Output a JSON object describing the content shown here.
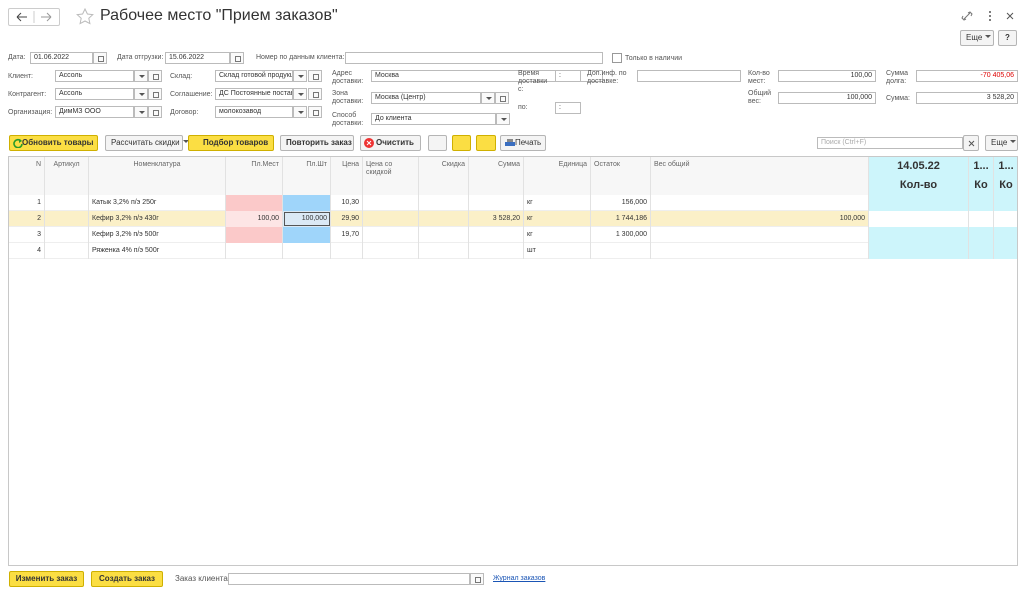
{
  "header": {
    "title": "Рабочее место \"Прием заказов\"",
    "more": "Еще",
    "help": "?"
  },
  "form": {
    "date": {
      "label": "Дата:",
      "value": "01.06.2022"
    },
    "ship_date": {
      "label": "Дата отгрузки:",
      "value": "15.06.2022"
    },
    "client_number": {
      "label": "Номер по данным клиента:"
    },
    "in_stock": {
      "label": "Только в наличии"
    },
    "client": {
      "label": "Клиент:",
      "value": "Ассоль"
    },
    "counterparty": {
      "label": "Контрагент:",
      "value": "Ассоль"
    },
    "organization": {
      "label": "Организация:",
      "value": "ДимМЗ ООО"
    },
    "warehouse": {
      "label": "Склад:",
      "value": "Склад готовой продукц"
    },
    "agreement": {
      "label": "Соглашение:",
      "value": "ДС Постоянные постав"
    },
    "contract": {
      "label": "Договор:",
      "value": "молокозавод"
    },
    "address": {
      "label": "Адрес доставки:",
      "value": "Москва"
    },
    "zone": {
      "label": "Зона доставки:",
      "value": "Москва (Центр)"
    },
    "method": {
      "label": "Способ доставки:",
      "value": "До клиента"
    },
    "time_from": {
      "label": "Время доставки с:",
      "value": ":"
    },
    "time_to": {
      "label": "по:",
      "value": ":"
    },
    "extra_info": {
      "label": "Доп.инф. по доставке:"
    },
    "places": {
      "label": "Кол-во мест:",
      "value": "100,00"
    },
    "weight": {
      "label": "Общий вес:",
      "value": "100,000"
    },
    "debt": {
      "label": "Сумма долга:",
      "value": "-70 405,06"
    },
    "sum": {
      "label": "Сумма:",
      "value": "3 528,20"
    }
  },
  "toolbar": {
    "update": "Обновить товары",
    "discounts": "Рассчитать скидки",
    "pick": "Подбор товаров",
    "repeat": "Повторить заказ",
    "clear": "Очистить",
    "print": "Печать",
    "search": "Поиск (Ctrl+F)",
    "more": "Еще"
  },
  "table": {
    "columns": [
      "N",
      "Артикул",
      "Номенклатура",
      "Пл.Мест",
      "Пл.Шт",
      "Цена",
      "Цена со скидкой",
      "Скидка",
      "Сумма",
      "Единица",
      "Остаток",
      "Вес общий"
    ],
    "extra_columns": [
      {
        "title": "14.05.22",
        "sub": "Кол-во"
      },
      {
        "title": "1...",
        "sub": "Ко"
      },
      {
        "title": "1...",
        "sub": "Ко"
      }
    ],
    "rows": [
      [
        "1",
        null,
        "Катык  3,2% п/э 250г",
        null,
        null,
        "10,30",
        null,
        null,
        null,
        "кг",
        "156,000",
        null
      ],
      [
        "2",
        null,
        "Кефир 3,2% п/э 430г",
        "100,00",
        "100,000",
        "29,90",
        null,
        null,
        "3 528,20",
        "кг",
        "1 744,186",
        "100,000"
      ],
      [
        "3",
        null,
        "Кефир 3,2% п/э 500г",
        null,
        null,
        "19,70",
        null,
        null,
        null,
        "кг",
        "1 300,000",
        null
      ],
      [
        "4",
        null,
        "Ряженка 4% п/э 500г",
        null,
        null,
        null,
        null,
        null,
        null,
        "шт",
        null,
        null
      ]
    ]
  },
  "footer": {
    "change": "Изменить заказ",
    "create": "Создать заказ",
    "order_label": "Заказ клиента:",
    "journal": "Журнал заказов"
  }
}
